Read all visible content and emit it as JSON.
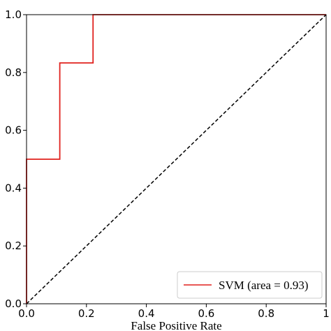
{
  "chart_data": {
    "type": "line",
    "title": "",
    "xlabel": "False Positive Rate",
    "ylabel": "",
    "xlim": [
      0,
      1
    ],
    "ylim": [
      0,
      1
    ],
    "xticks": [
      0.0,
      0.2,
      0.4,
      0.6,
      0.8,
      1.0
    ],
    "xtick_labels": [
      "0.0",
      "0.2",
      "0.4",
      "0.6",
      "0.8",
      "1"
    ],
    "yticks": [
      0.0,
      0.2,
      0.4,
      0.6,
      0.8,
      1.0
    ],
    "ytick_labels": [
      "0.0",
      "0.2",
      "0.4",
      "0.6",
      "0.8",
      "1.0"
    ],
    "grid": false,
    "legend_position": "bottom-right",
    "series": [
      {
        "name": "SVM (area = 0.93)",
        "color": "#e0211d",
        "style": "solid",
        "x": [
          0.0,
          0.0,
          0.0,
          0.111,
          0.111,
          0.222,
          0.222,
          1.0
        ],
        "y": [
          0.0,
          0.167,
          0.5,
          0.5,
          0.833,
          0.833,
          1.0,
          1.0
        ]
      },
      {
        "name": "",
        "color": "#000000",
        "style": "dashed",
        "x": [
          0.0,
          1.0
        ],
        "y": [
          0.0,
          1.0
        ]
      }
    ]
  }
}
